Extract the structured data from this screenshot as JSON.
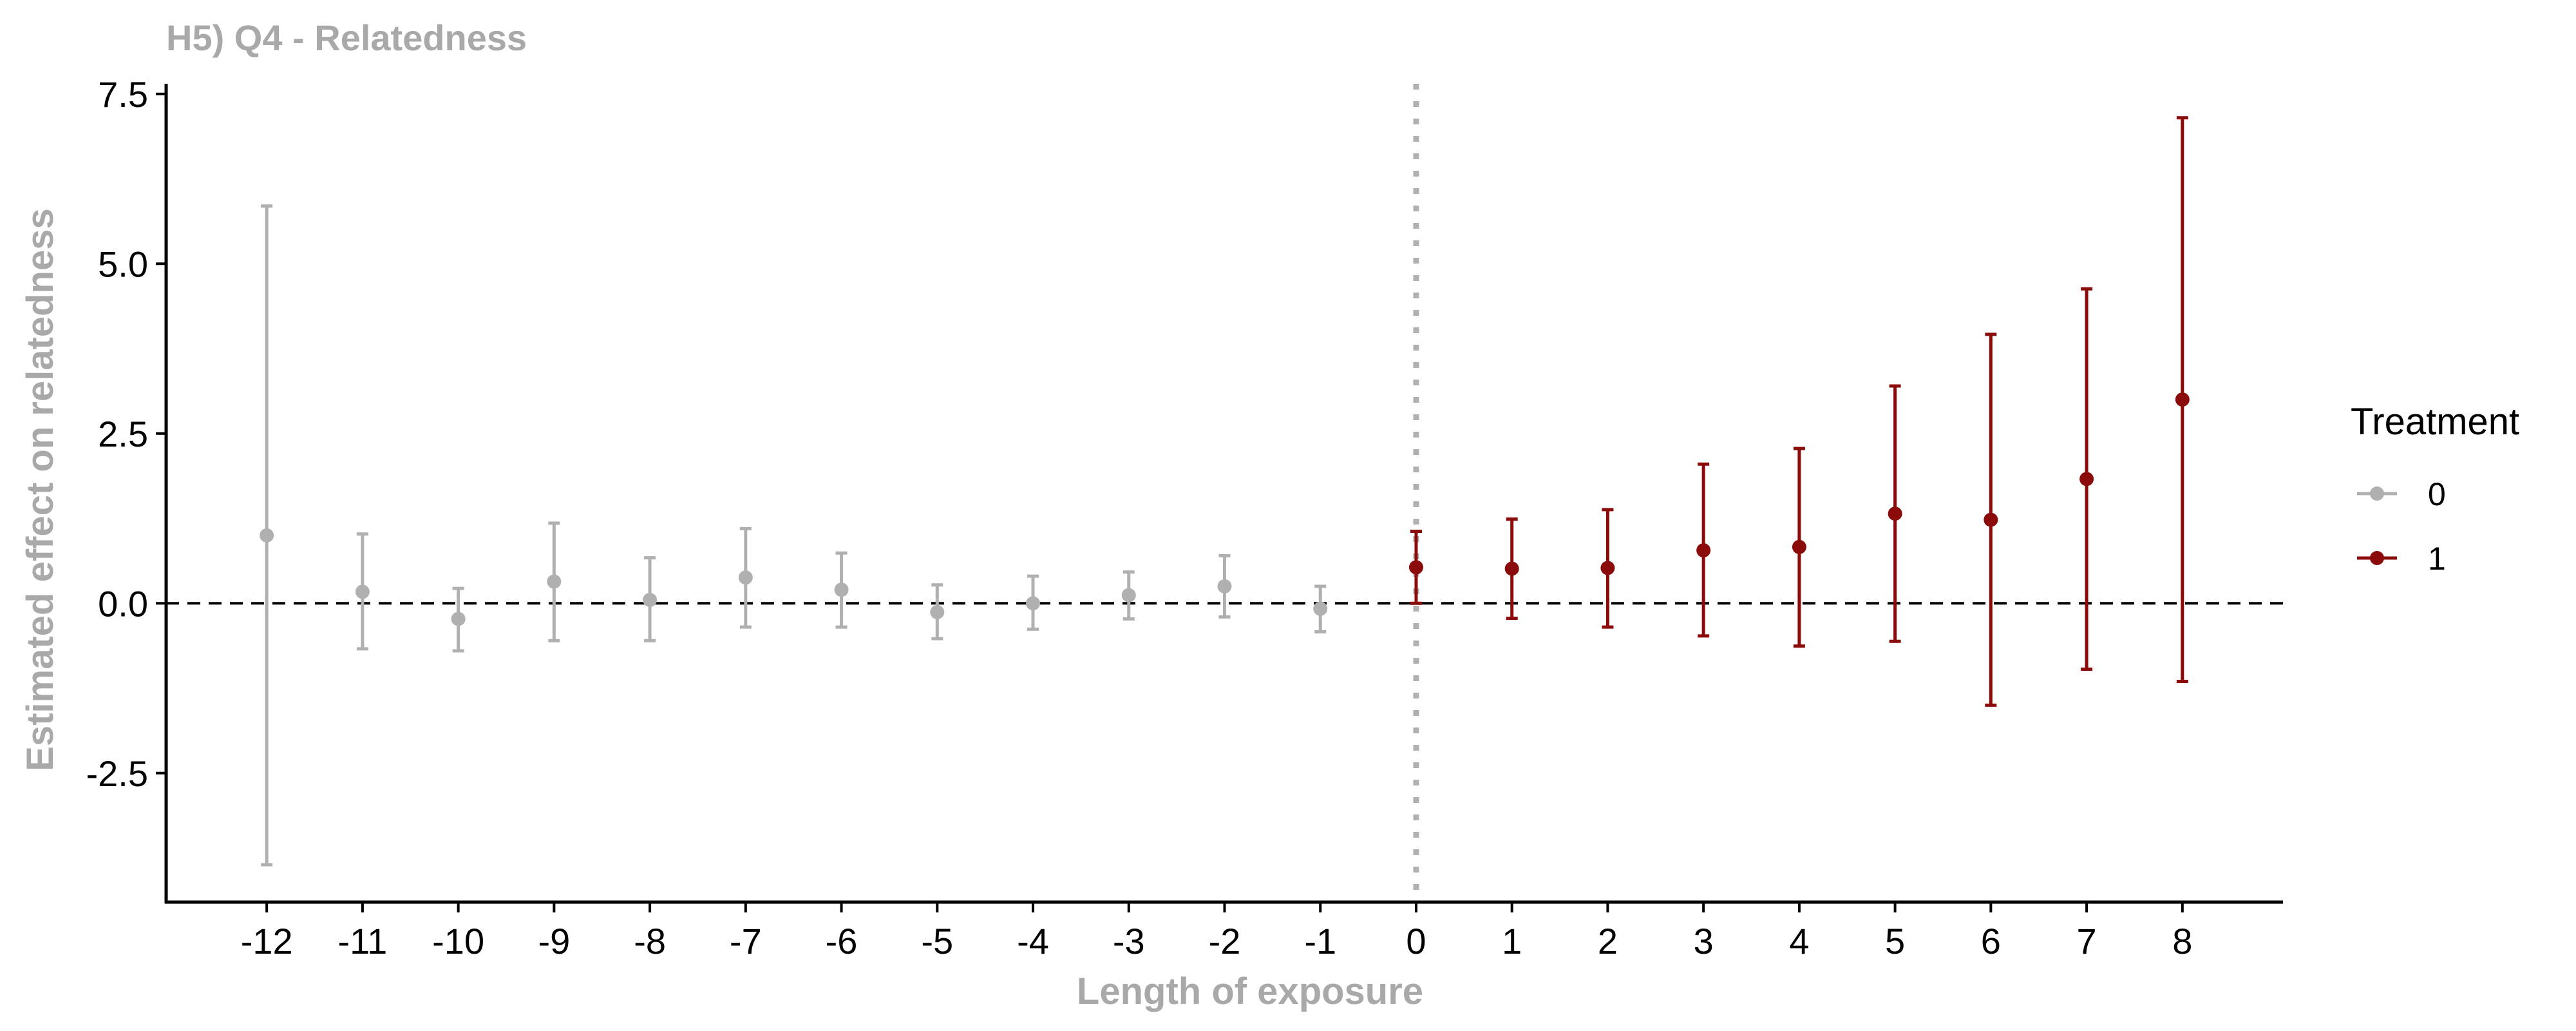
{
  "chart_data": {
    "type": "scatter",
    "title": "H5) Q4 - Relatedness",
    "xlabel": "Length of exposure",
    "ylabel": "Estimated effect on relatedness",
    "xlim": [
      -13.05,
      9.05
    ],
    "ylim": [
      -4.4,
      7.65
    ],
    "x_ticks": [
      -12,
      -11,
      -10,
      -9,
      -8,
      -7,
      -6,
      -5,
      -4,
      -3,
      -2,
      -1,
      0,
      1,
      2,
      3,
      4,
      5,
      6,
      7,
      8
    ],
    "y_ticks": [
      -2.5,
      0.0,
      2.5,
      5.0,
      7.5
    ],
    "y_tick_labels": [
      "-2.5",
      "0.0",
      "2.5",
      "5.0",
      "7.5"
    ],
    "reference_lines": {
      "horizontal_y": 0,
      "vertical_x": 0
    },
    "grid": false,
    "legend": {
      "title": "Treatment",
      "placement": "right"
    },
    "series": [
      {
        "name": "0",
        "color": "#b0b0b0",
        "points": [
          {
            "x": -12,
            "y": 1.0,
            "lower": -3.85,
            "upper": 5.85
          },
          {
            "x": -11,
            "y": 0.17,
            "lower": -0.67,
            "upper": 1.02
          },
          {
            "x": -10,
            "y": -0.23,
            "lower": -0.7,
            "upper": 0.22
          },
          {
            "x": -9,
            "y": 0.32,
            "lower": -0.55,
            "upper": 1.18
          },
          {
            "x": -8,
            "y": 0.05,
            "lower": -0.55,
            "upper": 0.67
          },
          {
            "x": -7,
            "y": 0.38,
            "lower": -0.35,
            "upper": 1.1
          },
          {
            "x": -6,
            "y": 0.2,
            "lower": -0.35,
            "upper": 0.74
          },
          {
            "x": -5,
            "y": -0.13,
            "lower": -0.52,
            "upper": 0.27
          },
          {
            "x": -4,
            "y": 0.0,
            "lower": -0.38,
            "upper": 0.4
          },
          {
            "x": -3,
            "y": 0.12,
            "lower": -0.23,
            "upper": 0.46
          },
          {
            "x": -2,
            "y": 0.25,
            "lower": -0.2,
            "upper": 0.7
          },
          {
            "x": -1,
            "y": -0.08,
            "lower": -0.42,
            "upper": 0.25
          }
        ]
      },
      {
        "name": "1",
        "color": "#8b0a0a",
        "points": [
          {
            "x": 0,
            "y": 0.53,
            "lower": 0.0,
            "upper": 1.06
          },
          {
            "x": 1,
            "y": 0.51,
            "lower": -0.22,
            "upper": 1.24
          },
          {
            "x": 2,
            "y": 0.52,
            "lower": -0.35,
            "upper": 1.38
          },
          {
            "x": 3,
            "y": 0.78,
            "lower": -0.48,
            "upper": 2.05
          },
          {
            "x": 4,
            "y": 0.83,
            "lower": -0.63,
            "upper": 2.28
          },
          {
            "x": 5,
            "y": 1.32,
            "lower": -0.56,
            "upper": 3.2
          },
          {
            "x": 6,
            "y": 1.23,
            "lower": -1.5,
            "upper": 3.96
          },
          {
            "x": 7,
            "y": 1.83,
            "lower": -0.97,
            "upper": 4.63
          },
          {
            "x": 8,
            "y": 3.0,
            "lower": -1.15,
            "upper": 7.15
          }
        ]
      }
    ]
  }
}
